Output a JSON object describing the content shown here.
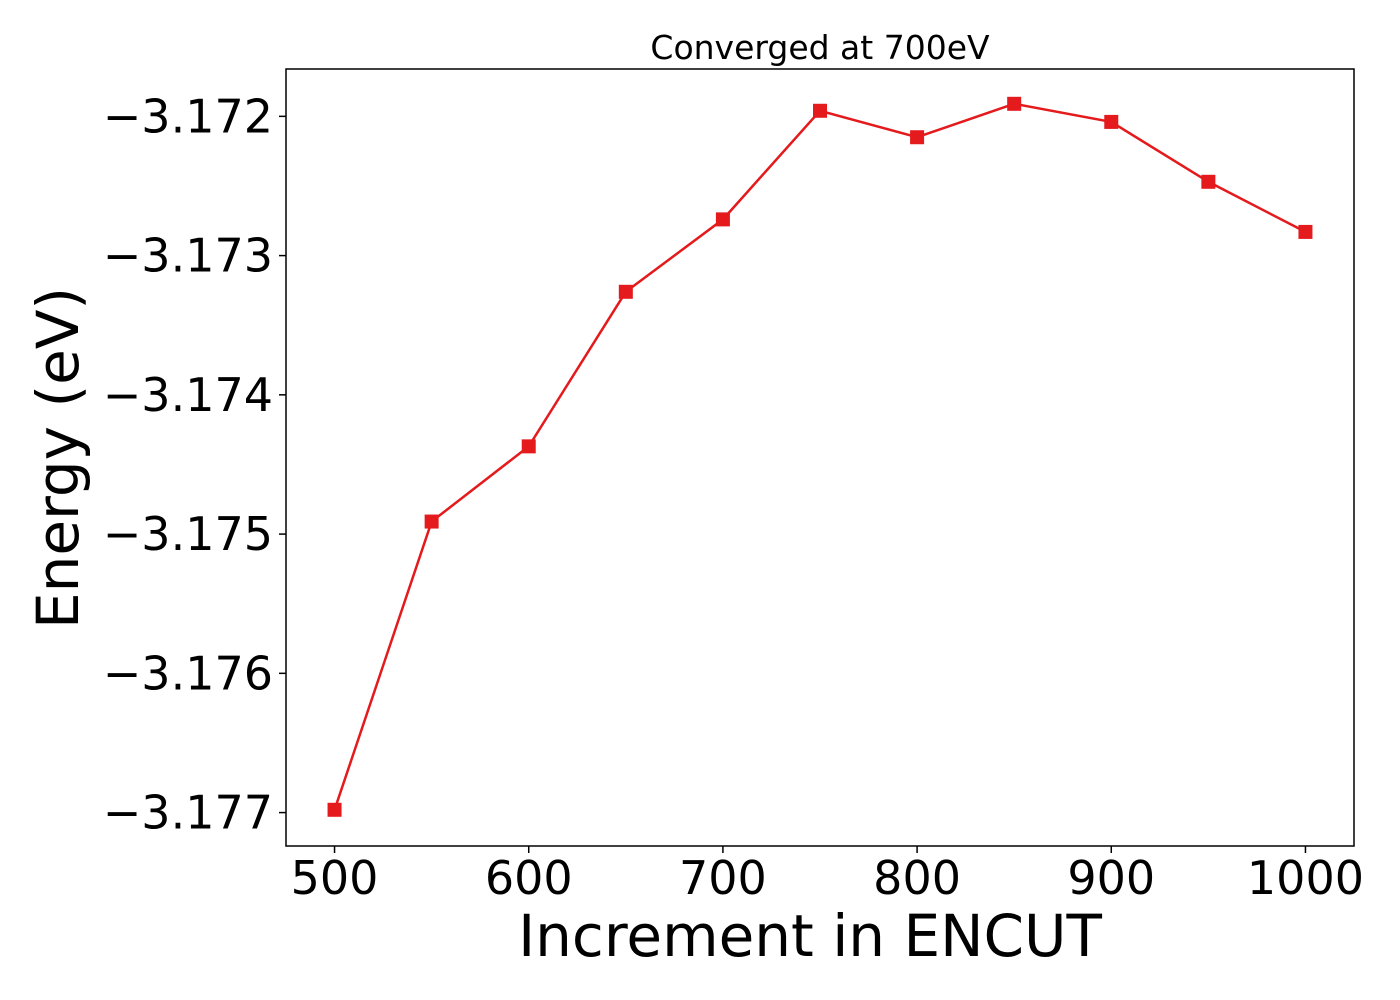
{
  "chart_data": {
    "type": "line",
    "title": "Converged at 700eV",
    "xlabel": "Increment in ENCUT",
    "ylabel": "Energy (eV)",
    "xlim": [
      475,
      1025
    ],
    "ylim": [
      -3.17724,
      -3.17166
    ],
    "xticks": [
      500,
      600,
      700,
      800,
      900,
      1000
    ],
    "xtick_labels": [
      "500",
      "600",
      "700",
      "800",
      "900",
      "1000"
    ],
    "yticks": [
      -3.172,
      -3.173,
      -3.174,
      -3.175,
      -3.176,
      -3.177
    ],
    "ytick_labels": [
      "−3.172",
      "−3.173",
      "−3.174",
      "−3.175",
      "−3.176",
      "−3.177"
    ],
    "grid": false,
    "series": [
      {
        "color": "#e41a1c",
        "marker": "square",
        "x": [
          500,
          550,
          600,
          650,
          700,
          750,
          800,
          850,
          900,
          950,
          1000
        ],
        "y": [
          -3.17698,
          -3.17491,
          -3.17437,
          -3.17326,
          -3.17274,
          -3.17196,
          -3.17215,
          -3.17191,
          -3.17204,
          -3.17247,
          -3.17283
        ]
      }
    ]
  }
}
